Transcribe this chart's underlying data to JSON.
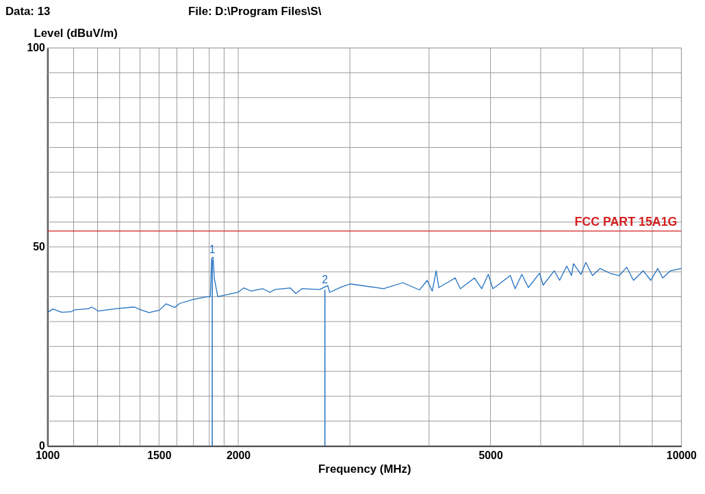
{
  "chart_data": {
    "type": "line",
    "xlabel": "Frequency (MHz)",
    "ylabel": "Level (dBuV/m)",
    "x": [
      1000,
      1020,
      1053,
      1090,
      1104,
      1162,
      1174,
      1203,
      1283,
      1371,
      1405,
      1447,
      1502,
      1539,
      1589,
      1617,
      1698,
      1789,
      1807,
      1816,
      1825,
      1834,
      1857,
      1903,
      1998,
      2042,
      2097,
      2186,
      2244,
      2285,
      2416,
      2465,
      2521,
      2688,
      2768,
      2788,
      2914,
      3006,
      3391,
      3637,
      3864,
      3973,
      4047,
      4105,
      4145,
      4399,
      4481,
      4718,
      4843,
      4960,
      5044,
      5373,
      5468,
      5604,
      5737,
      5976,
      6054,
      6303,
      6428,
      6596,
      6710,
      6759,
      6947,
      7070,
      7243,
      7444,
      7712,
      7984,
      8200,
      8406,
      8710,
      8950,
      9180,
      9347,
      9613,
      10000
    ],
    "series": [
      {
        "color": "#1f6fc0",
        "values": [
          33.5,
          34.4,
          33.6,
          33.7,
          34.2,
          34.5,
          34.9,
          33.9,
          34.5,
          34.9,
          34.2,
          33.5,
          34.1,
          35.7,
          34.8,
          35.8,
          36.8,
          37.5,
          37.5,
          47.1,
          47.4,
          42.0,
          37.5,
          37.9,
          38.6,
          39.7,
          38.9,
          39.5,
          38.6,
          39.3,
          39.7,
          38.3,
          39.5,
          39.3,
          40.3,
          38.6,
          40.0,
          40.7,
          39.5,
          41.0,
          39.2,
          41.6,
          38.9,
          44.0,
          39.8,
          42.2,
          39.5,
          42.2,
          39.5,
          43.1,
          39.5,
          42.8,
          39.5,
          43.1,
          39.8,
          43.4,
          40.4,
          44.0,
          41.6,
          45.2,
          42.8,
          45.8,
          43.1,
          46.1,
          42.8,
          44.6,
          43.4,
          42.8,
          44.9,
          41.6,
          44.0,
          41.6,
          44.6,
          42.2,
          44.0,
          44.6
        ]
      }
    ],
    "xlim": [
      1000,
      10000
    ],
    "xticks": [
      1000,
      {
        "value": 1100,
        "label": null
      },
      {
        "value": 1200,
        "label": null
      },
      {
        "value": 1300,
        "label": null
      },
      {
        "value": 1400,
        "label": null
      },
      1500,
      {
        "value": 1600,
        "label": null
      },
      {
        "value": 1700,
        "label": null
      },
      {
        "value": 1800,
        "label": null
      },
      {
        "value": 1900,
        "label": null
      },
      2000,
      {
        "value": 3000,
        "label": null
      },
      {
        "value": 4000,
        "label": null
      },
      5000,
      {
        "value": 6000,
        "label": null
      },
      {
        "value": 7000,
        "label": null
      },
      {
        "value": 8000,
        "label": null
      },
      {
        "value": 9000,
        "label": null
      },
      10000
    ],
    "ylim": [
      0,
      100
    ],
    "yticks": [
      0,
      {
        "value": 6.25,
        "label": null
      },
      {
        "value": 12.5,
        "label": null
      },
      {
        "value": 18.75,
        "label": null
      },
      {
        "value": 25,
        "label": null
      },
      {
        "value": 31.25,
        "label": null
      },
      {
        "value": 37.5,
        "label": null
      },
      {
        "value": 43.75,
        "label": null
      },
      50,
      {
        "value": 56.25,
        "label": null
      },
      {
        "value": 62.5,
        "label": null
      },
      {
        "value": 68.75,
        "label": null
      },
      {
        "value": 75,
        "label": null
      },
      {
        "value": 81.25,
        "label": null
      },
      {
        "value": 87.5,
        "label": null
      },
      {
        "value": 93.75,
        "label": null
      },
      100
    ],
    "log": "x",
    "grid": true,
    "ref_lines": [
      {
        "axis": "y",
        "value": 54,
        "label": "FCC PART 15A1G",
        "color": "#d42020"
      }
    ],
    "annotations": [
      "Data: 13",
      "File: D:\\Program Files\\S\\",
      {
        "text": "1",
        "x": 1820,
        "y": 47.4
      },
      {
        "text": "2",
        "x": 2740,
        "y": 39.9
      }
    ]
  }
}
